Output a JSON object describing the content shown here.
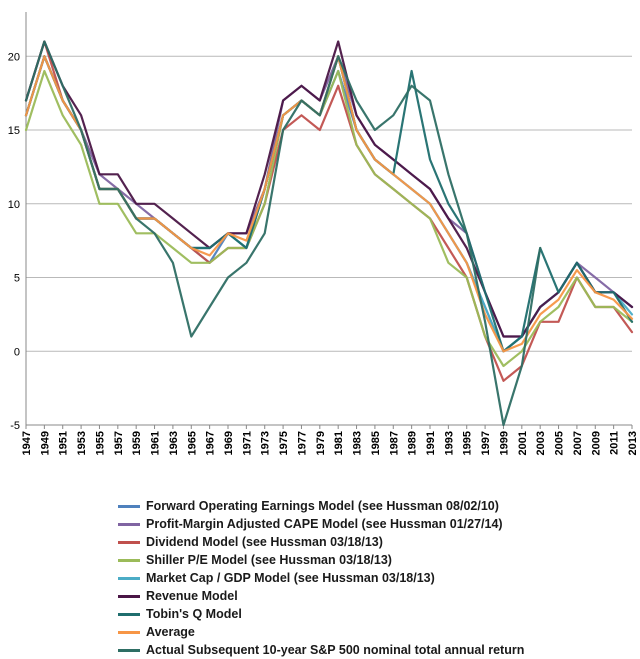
{
  "chart_data": {
    "type": "line",
    "title": "",
    "xlabel": "",
    "ylabel": "",
    "ylim": [
      -5,
      23
    ],
    "xlim": [
      1947,
      2013
    ],
    "yticks": [
      -5,
      0,
      5,
      10,
      15,
      20
    ],
    "xticks": [
      1947,
      1949,
      1951,
      1953,
      1955,
      1957,
      1959,
      1961,
      1963,
      1965,
      1967,
      1969,
      1971,
      1973,
      1975,
      1977,
      1979,
      1981,
      1983,
      1985,
      1987,
      1989,
      1991,
      1993,
      1995,
      1997,
      1999,
      2001,
      2003,
      2005,
      2007,
      2009,
      2011,
      2013
    ],
    "grid": "horizontal",
    "legend_position": "bottom",
    "x": [
      1947,
      1949,
      1951,
      1953,
      1955,
      1957,
      1959,
      1961,
      1963,
      1965,
      1967,
      1969,
      1971,
      1973,
      1975,
      1977,
      1979,
      1981,
      1983,
      1985,
      1987,
      1989,
      1991,
      1993,
      1995,
      1997,
      1999,
      2001,
      2003,
      2005,
      2007,
      2009,
      2011,
      2013
    ],
    "series": [
      {
        "name": "Forward Operating Earnings Model (see Hussman 08/02/10)",
        "color": "#4f81bd",
        "values": [
          16,
          20,
          17,
          15,
          11,
          11,
          9,
          9,
          8,
          7,
          6,
          8,
          7,
          11,
          16,
          17,
          16,
          19,
          15,
          13,
          12,
          11,
          10,
          8,
          6,
          3,
          0,
          1,
          3,
          4,
          6,
          4,
          4,
          3
        ]
      },
      {
        "name": "Profit-Margin Adjusted CAPE Model (see Hussman 01/27/14)",
        "color": "#8064a2",
        "values": [
          16,
          20,
          17,
          15,
          12,
          11,
          10,
          9,
          8,
          7,
          7,
          8,
          8,
          11,
          17,
          18,
          17,
          20,
          16,
          14,
          13,
          12,
          11,
          9,
          8,
          4,
          1,
          1,
          3,
          4,
          6,
          5,
          4,
          3
        ]
      },
      {
        "name": "Dividend Model (see Hussman 03/18/13)",
        "color": "#c0504d",
        "values": [
          17,
          21,
          17,
          15,
          11,
          11,
          9,
          9,
          8,
          7,
          6,
          7,
          7,
          10,
          15,
          16,
          15,
          18,
          14,
          12,
          11,
          10,
          9,
          7,
          5,
          1,
          -2,
          -1,
          2,
          2,
          5,
          3,
          3,
          1.3
        ]
      },
      {
        "name": "Shiller P/E Model (see Hussman 03/18/13)",
        "color": "#9bbb59",
        "values": [
          15,
          19,
          16,
          14,
          10,
          10,
          8,
          8,
          7,
          6,
          6,
          7,
          7,
          10,
          16,
          17,
          16,
          19,
          14,
          12,
          11,
          10,
          9,
          6,
          5,
          1,
          -1,
          0,
          2,
          3,
          5,
          3,
          3,
          2
        ]
      },
      {
        "name": "Market Cap / GDP Model (see Hussman 03/18/13)",
        "color": "#4bacc6",
        "values": [
          16,
          20,
          17,
          15,
          11,
          11,
          9,
          9,
          8,
          7,
          7,
          8,
          7,
          11,
          16,
          17,
          16,
          20,
          15,
          13,
          12,
          11,
          10,
          8,
          6,
          3,
          0,
          1,
          3,
          4,
          6,
          4,
          4,
          2.5
        ]
      },
      {
        "name": "Revenue Model",
        "color": "#4a1646",
        "values": [
          17,
          21,
          18,
          16,
          12,
          12,
          10,
          10,
          9,
          8,
          7,
          8,
          8,
          12,
          17,
          18,
          17,
          21,
          16,
          14,
          13,
          12,
          11,
          9,
          7,
          4,
          1,
          1,
          3,
          4,
          6,
          4,
          4,
          3
        ]
      },
      {
        "name": "Tobin's Q Model",
        "color": "#1f6e6e",
        "values": [
          16,
          20,
          17,
          15,
          11,
          11,
          9,
          9,
          8,
          7,
          7,
          8,
          7,
          11,
          16,
          17,
          16,
          20,
          15,
          13,
          12,
          19,
          13,
          10,
          8,
          4,
          0,
          1,
          7,
          4,
          6,
          4,
          4,
          2
        ]
      },
      {
        "name": "Average",
        "color": "#f79646",
        "values": [
          16,
          20,
          17,
          15,
          11,
          11,
          9,
          9,
          8,
          7,
          6.5,
          8,
          7.5,
          11,
          16,
          17,
          16,
          20,
          15,
          13,
          12,
          11,
          10,
          8,
          6,
          2.5,
          0,
          0.5,
          2.5,
          3.5,
          5.5,
          4,
          3.5,
          2.2
        ]
      },
      {
        "name": "Actual Subsequent 10-year S&P 500 nominal total annual return",
        "color": "#2e6e64",
        "values": [
          17,
          21,
          18,
          15,
          11,
          11,
          9,
          8,
          6,
          1,
          3,
          5,
          6,
          8,
          15,
          17,
          16,
          20,
          17,
          15,
          16,
          18,
          17,
          12,
          8,
          2,
          -5,
          -1,
          7,
          null,
          null,
          null,
          null,
          null
        ]
      }
    ]
  }
}
